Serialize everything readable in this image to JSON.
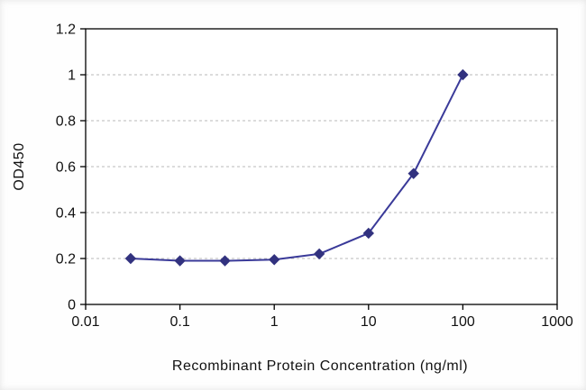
{
  "chart_data": {
    "type": "line",
    "title": "",
    "xlabel": "Recombinant Protein Concentration (ng/ml)",
    "ylabel": "OD450",
    "x_scale": "log",
    "xlim": [
      0.01,
      1000
    ],
    "ylim": [
      0,
      1.2
    ],
    "x_ticks": [
      0.01,
      0.1,
      1,
      10,
      100,
      1000
    ],
    "x_tick_labels": [
      "0.01",
      "0.1",
      "1",
      "10",
      "100",
      "1000"
    ],
    "y_ticks": [
      0,
      0.2,
      0.4,
      0.6,
      0.8,
      1,
      1.2
    ],
    "y_tick_labels": [
      "0",
      "0.2",
      "0.4",
      "0.6",
      "0.8",
      "1",
      "1.2"
    ],
    "grid": "horizontal",
    "legend": "none",
    "series": [
      {
        "name": "OD450",
        "marker": "diamond",
        "x": [
          0.03,
          0.1,
          0.3,
          1,
          3,
          10,
          30,
          100
        ],
        "y": [
          0.2,
          0.19,
          0.19,
          0.195,
          0.22,
          0.31,
          0.57,
          1.0
        ]
      }
    ],
    "colors": {
      "line": "#3a3a99",
      "marker": "#32327f",
      "axis": "#000000",
      "grid": "#b8b8b8",
      "tick_text": "#111111",
      "plot_bg": "#ffffff"
    }
  }
}
